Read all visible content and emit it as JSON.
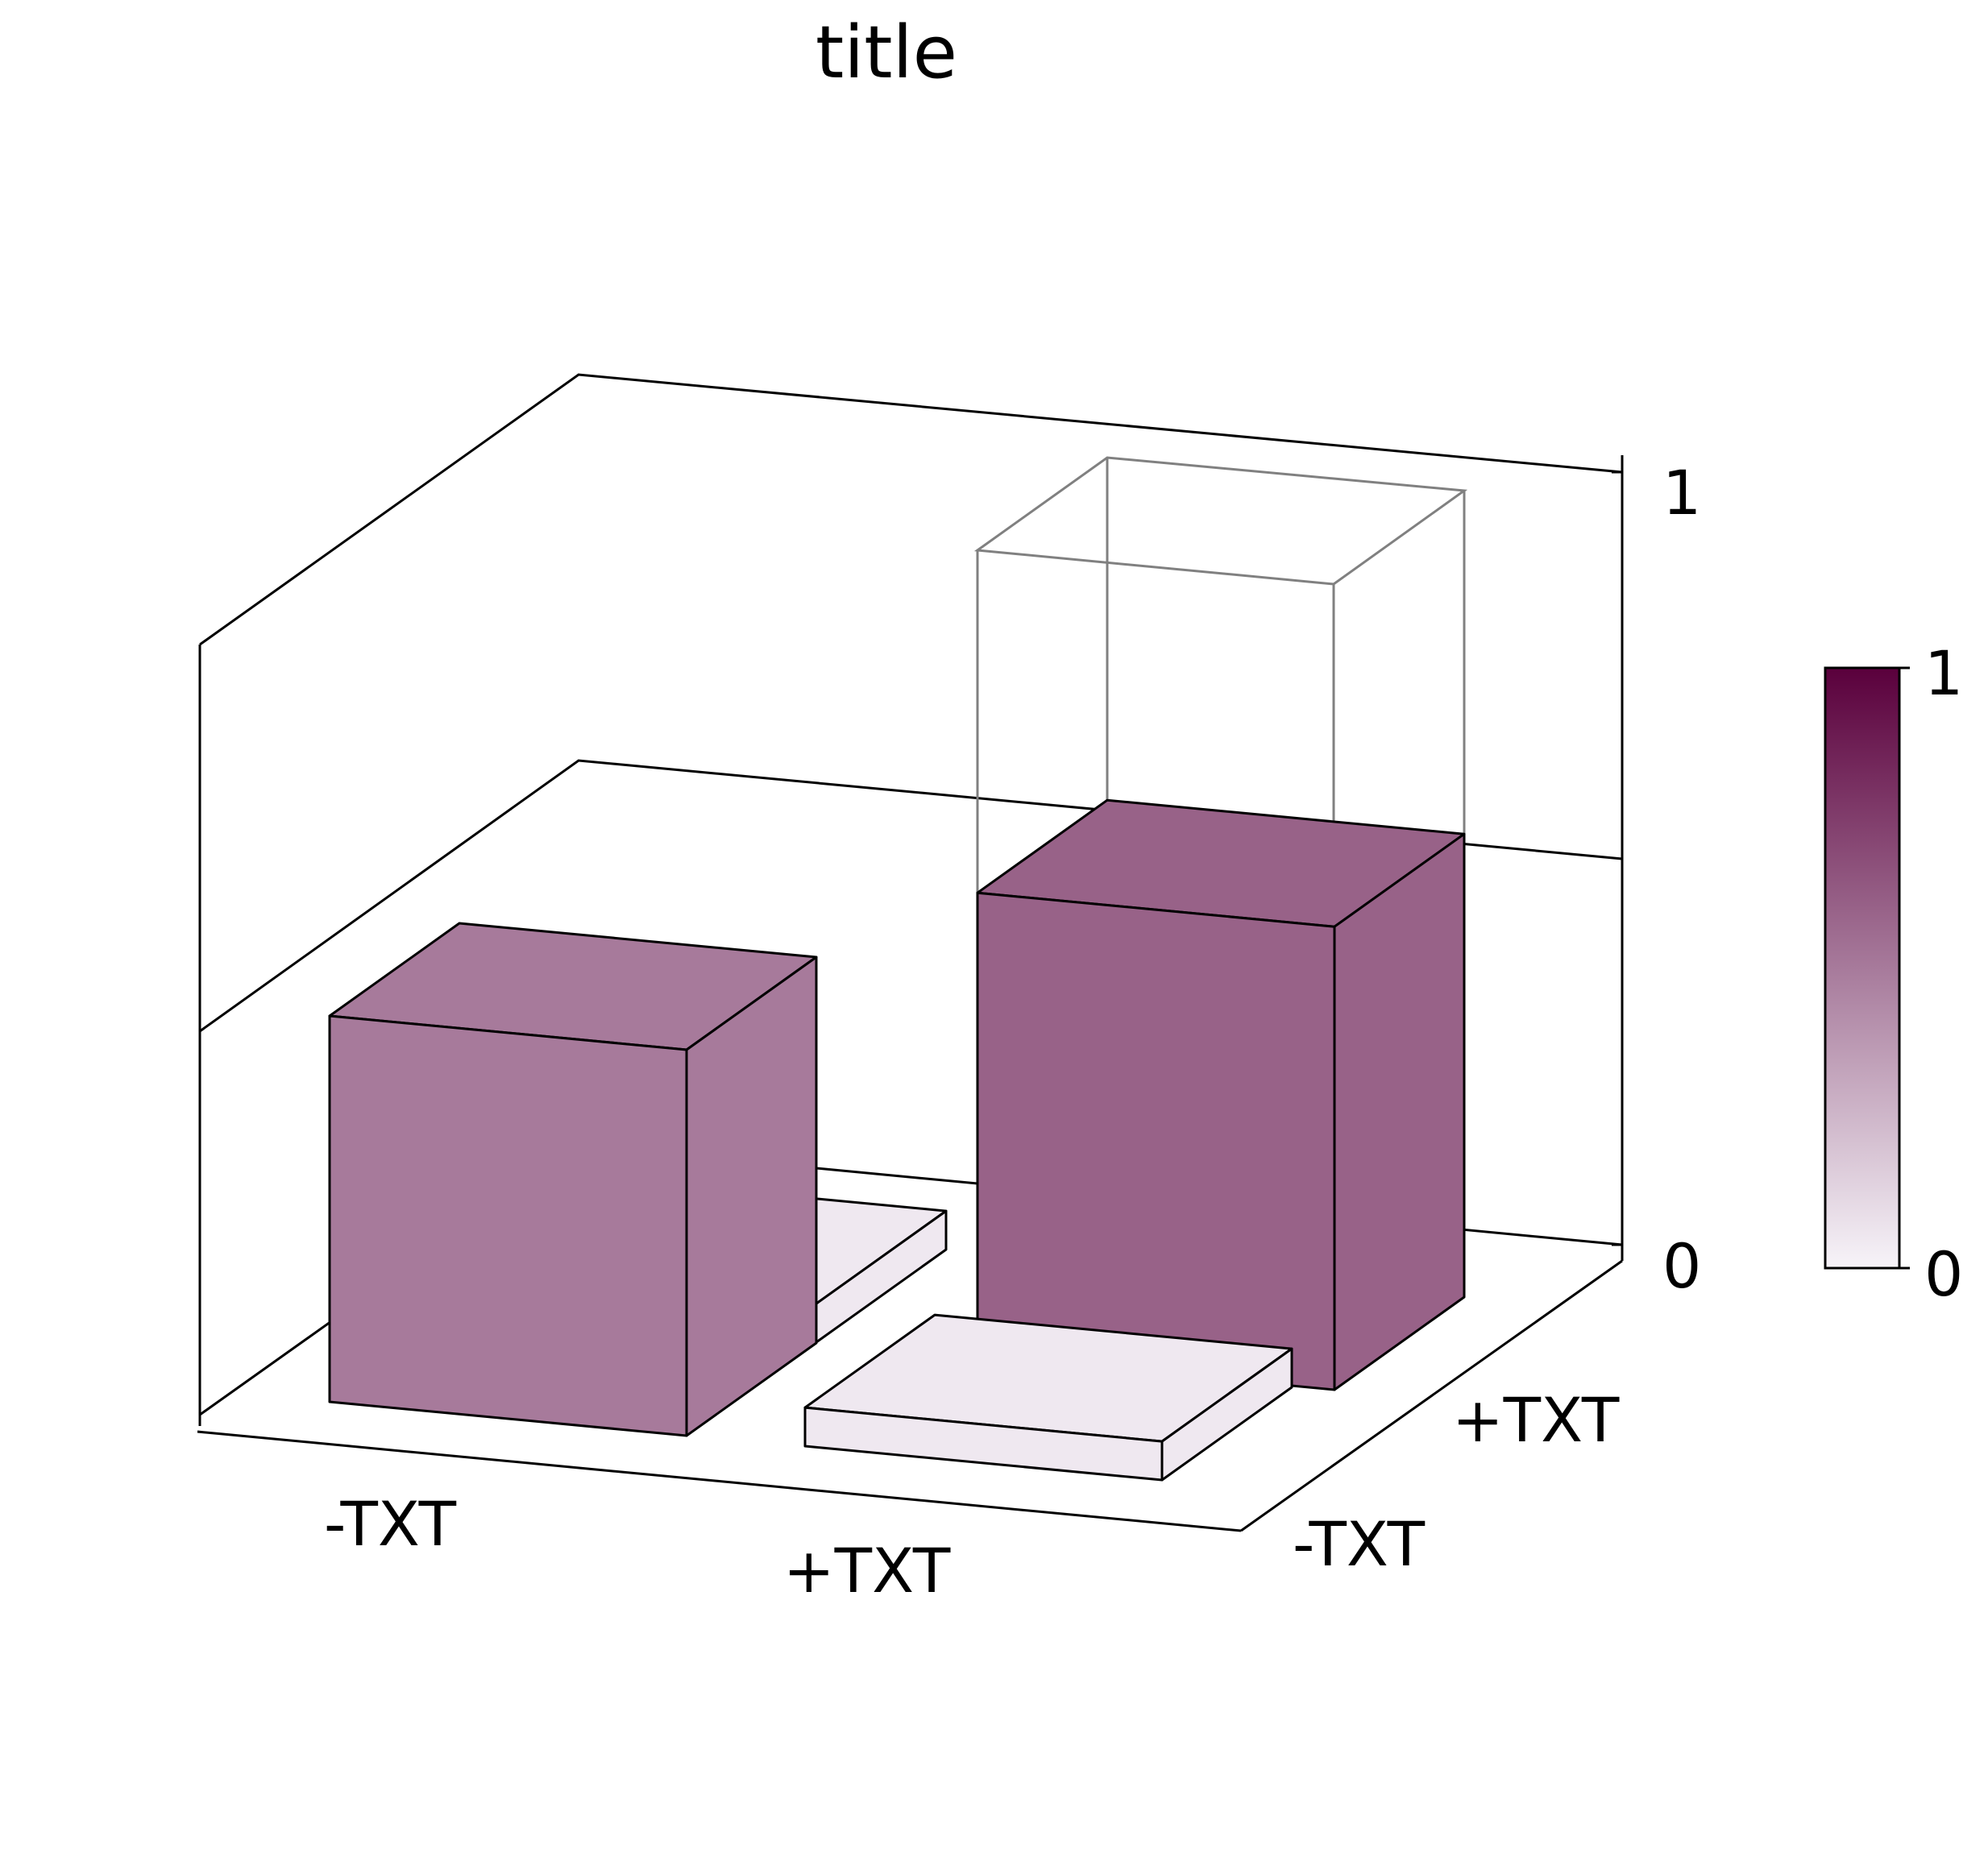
{
  "chart_data": {
    "type": "bar3d",
    "title": "title",
    "x_categories": [
      "-TXT",
      "+TXT"
    ],
    "y_categories": [
      "-TXT",
      "+TXT"
    ],
    "bars": [
      {
        "x": "-TXT",
        "y": "-TXT",
        "value": 0.5
      },
      {
        "x": "+TXT",
        "y": "-TXT",
        "value": 0.05
      },
      {
        "x": "-TXT",
        "y": "+TXT",
        "value": 0.05
      },
      {
        "x": "+TXT",
        "y": "+TXT",
        "value": 0.6
      }
    ],
    "ghost_bar": {
      "x": "+TXT",
      "y": "+TXT",
      "value": 1.0
    },
    "zlim": [
      0,
      1
    ],
    "z_ticks": [
      "0",
      "1"
    ],
    "colorbar": {
      "min": 0,
      "max": 1,
      "tick_labels": [
        "0",
        "1"
      ],
      "color_low": "#f7f4f9",
      "color_high": "#5a003c"
    }
  }
}
